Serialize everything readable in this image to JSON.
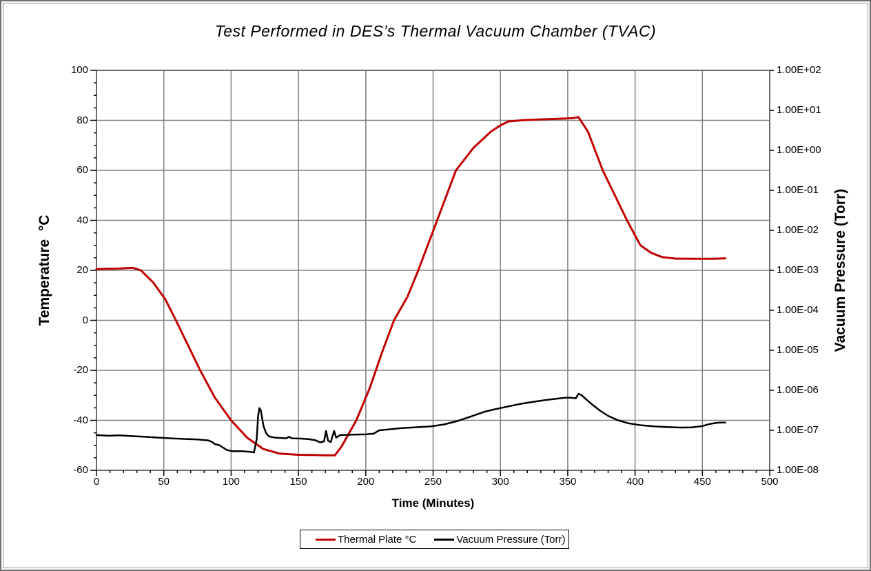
{
  "window": {
    "background": "#ffffff",
    "frame_border_color": "#6f6f6f"
  },
  "chart_data": {
    "type": "line",
    "title": "Test Performed in DES’s Thermal Vacuum Chamber (TVAC)",
    "xlabel": "Time (Minutes)",
    "grid": {
      "color": "#808080",
      "on": true
    },
    "plot_border_color": "#6b6b6b",
    "x_axis": {
      "min": 0,
      "max": 500,
      "minor_step": 10,
      "tick_values": [
        0,
        50,
        100,
        150,
        200,
        250,
        300,
        350,
        400,
        450,
        500
      ],
      "tick_labels": [
        "0",
        "50",
        "100",
        "150",
        "200",
        "250",
        "300",
        "350",
        "400",
        "450",
        "500"
      ]
    },
    "left_axis": {
      "title": "Temperature  °C",
      "min": -60,
      "max": 100,
      "minor_step": 5,
      "tick_values": [
        100,
        80,
        60,
        40,
        20,
        0,
        -20,
        -40,
        -60
      ],
      "tick_labels": [
        "100",
        "80",
        "60",
        "40",
        "20",
        "0",
        "-20",
        "-40",
        "-60"
      ]
    },
    "right_axis": {
      "title": "Vacuum Pressure (Torr)",
      "scale": "log",
      "top_exponent": 2,
      "bottom_exponent": -8,
      "tick_exponents": [
        2,
        1,
        0,
        -1,
        -2,
        -3,
        -4,
        -5,
        -6,
        -7,
        -8
      ],
      "tick_labels": [
        "1.00E+02",
        "1.00E+01",
        "1.00E+00",
        "1.00E-01",
        "1.00E-02",
        "1.00E-03",
        "1.00E-04",
        "1.00E-05",
        "1.00E-06",
        "1.00E-07",
        "1.00E-08"
      ]
    },
    "legend": {
      "position": "bottom",
      "entries": [
        "Thermal Plate °C",
        "Vacuum Pressure (Torr)"
      ]
    },
    "series": [
      {
        "name": "Thermal Plate °C",
        "axis": "left",
        "color": "#C00000",
        "points": [
          [
            0,
            20.5
          ],
          [
            8,
            20.6
          ],
          [
            16,
            20.7
          ],
          [
            23,
            20.9
          ],
          [
            27,
            21.0
          ],
          [
            33,
            20.0
          ],
          [
            42,
            15.2
          ],
          [
            51,
            8.5
          ],
          [
            59,
            0
          ],
          [
            68,
            -10
          ],
          [
            77,
            -20
          ],
          [
            88,
            -31
          ],
          [
            100,
            -40
          ],
          [
            112,
            -47
          ],
          [
            124,
            -51.5
          ],
          [
            136,
            -53.3
          ],
          [
            150,
            -53.8
          ],
          [
            163,
            -53.9
          ],
          [
            170,
            -54
          ],
          [
            177,
            -54
          ],
          [
            182,
            -50.5
          ],
          [
            193,
            -40
          ],
          [
            203,
            -27
          ],
          [
            212,
            -13
          ],
          [
            221,
            0
          ],
          [
            231,
            9.5
          ],
          [
            239,
            20
          ],
          [
            253,
            40
          ],
          [
            267,
            60
          ],
          [
            280,
            69
          ],
          [
            293,
            75.5
          ],
          [
            300,
            78
          ],
          [
            306,
            79.6
          ],
          [
            318,
            80.1
          ],
          [
            332,
            80.4
          ],
          [
            346,
            80.7
          ],
          [
            354,
            80.9
          ],
          [
            358,
            81.3
          ],
          [
            365,
            75.5
          ],
          [
            376,
            60
          ],
          [
            394,
            40
          ],
          [
            404,
            30
          ],
          [
            412,
            27
          ],
          [
            420,
            25.3
          ],
          [
            430,
            24.7
          ],
          [
            444,
            24.6
          ],
          [
            458,
            24.6
          ],
          [
            467,
            24.8
          ]
        ]
      },
      {
        "name": "Vacuum Pressure (Torr)",
        "axis": "right",
        "color": "#000000",
        "points": [
          [
            0,
            7.6e-08
          ],
          [
            9,
            7.3e-08
          ],
          [
            17,
            7.5e-08
          ],
          [
            25,
            7.2e-08
          ],
          [
            35,
            6.9e-08
          ],
          [
            45,
            6.6e-08
          ],
          [
            55,
            6.3e-08
          ],
          [
            65,
            6.1e-08
          ],
          [
            75,
            5.9e-08
          ],
          [
            83,
            5.6e-08
          ],
          [
            86,
            5.1e-08
          ],
          [
            88,
            4.5e-08
          ],
          [
            91,
            4.3e-08
          ],
          [
            94,
            3.7e-08
          ],
          [
            97,
            3.2e-08
          ],
          [
            101,
            3e-08
          ],
          [
            108,
            3e-08
          ],
          [
            114,
            2.9e-08
          ],
          [
            117,
            2.8e-08
          ],
          [
            119,
            6e-08
          ],
          [
            120,
            2.2e-07
          ],
          [
            121,
            3.6e-07
          ],
          [
            122,
            3.2e-07
          ],
          [
            124,
            1.3e-07
          ],
          [
            126,
            8.5e-08
          ],
          [
            128,
            7.1e-08
          ],
          [
            132,
            6.6e-08
          ],
          [
            138,
            6.4e-08
          ],
          [
            141,
            6.3e-08
          ],
          [
            143,
            6.9e-08
          ],
          [
            145,
            6.3e-08
          ],
          [
            152,
            6.2e-08
          ],
          [
            158,
            6e-08
          ],
          [
            163,
            5.6e-08
          ],
          [
            166,
            5e-08
          ],
          [
            169,
            5.3e-08
          ],
          [
            170.5,
            9.7e-08
          ],
          [
            172,
            5.5e-08
          ],
          [
            174,
            5.1e-08
          ],
          [
            176.5,
            9.7e-08
          ],
          [
            178,
            6.6e-08
          ],
          [
            181,
            7.6e-08
          ],
          [
            190,
            7.8e-08
          ],
          [
            200,
            7.9e-08
          ],
          [
            206,
            8.3e-08
          ],
          [
            210,
            1e-07
          ],
          [
            218,
            1.06e-07
          ],
          [
            226,
            1.13e-07
          ],
          [
            236,
            1.18e-07
          ],
          [
            248,
            1.25e-07
          ],
          [
            258,
            1.4e-07
          ],
          [
            268,
            1.7e-07
          ],
          [
            278,
            2.2e-07
          ],
          [
            288,
            2.9e-07
          ],
          [
            295,
            3.3e-07
          ],
          [
            305,
            3.9e-07
          ],
          [
            315,
            4.6e-07
          ],
          [
            325,
            5.2e-07
          ],
          [
            335,
            5.8e-07
          ],
          [
            344,
            6.3e-07
          ],
          [
            350,
            6.6e-07
          ],
          [
            353,
            6.5e-07
          ],
          [
            356,
            6.3e-07
          ],
          [
            358,
            8.2e-07
          ],
          [
            360,
            7.7e-07
          ],
          [
            364,
            5.8e-07
          ],
          [
            369,
            4.2e-07
          ],
          [
            374,
            3.1e-07
          ],
          [
            380,
            2.3e-07
          ],
          [
            387,
            1.8e-07
          ],
          [
            395,
            1.5e-07
          ],
          [
            405,
            1.33e-07
          ],
          [
            415,
            1.25e-07
          ],
          [
            425,
            1.2e-07
          ],
          [
            434,
            1.17e-07
          ],
          [
            442,
            1.18e-07
          ],
          [
            450,
            1.28e-07
          ],
          [
            456,
            1.45e-07
          ],
          [
            461,
            1.55e-07
          ],
          [
            467,
            1.57e-07
          ]
        ]
      }
    ]
  }
}
